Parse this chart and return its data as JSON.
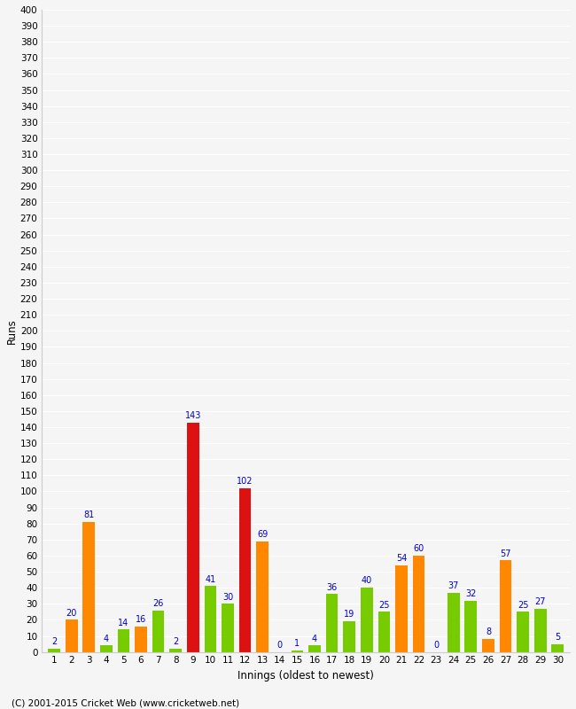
{
  "title": "",
  "xlabel": "Innings (oldest to newest)",
  "ylabel": "Runs",
  "ylim": [
    0,
    400
  ],
  "innings": [
    1,
    2,
    3,
    4,
    5,
    6,
    7,
    8,
    9,
    10,
    11,
    12,
    13,
    14,
    15,
    16,
    17,
    18,
    19,
    20,
    21,
    22,
    23,
    24,
    25,
    26,
    27,
    28,
    29,
    30
  ],
  "values": [
    2,
    20,
    81,
    4,
    14,
    16,
    26,
    2,
    143,
    41,
    30,
    102,
    69,
    0,
    1,
    4,
    36,
    19,
    40,
    25,
    54,
    60,
    0,
    37,
    32,
    8,
    57,
    25,
    27,
    5
  ],
  "colors": [
    "green",
    "orange",
    "orange",
    "green",
    "green",
    "orange",
    "green",
    "green",
    "red",
    "green",
    "green",
    "red",
    "orange",
    "green",
    "green",
    "green",
    "green",
    "green",
    "green",
    "green",
    "orange",
    "orange",
    "orange",
    "green",
    "green",
    "orange",
    "orange",
    "green",
    "green",
    "green"
  ],
  "color_map": {
    "green": "#77cc00",
    "orange": "#ff8800",
    "red": "#dd1111"
  },
  "background_color": "#f5f5f5",
  "text_color": "#0000cc",
  "copyright": "(C) 2001-2015 Cricket Web (www.cricketweb.net)",
  "grid_color": "#ffffff",
  "spine_color": "#cccccc"
}
